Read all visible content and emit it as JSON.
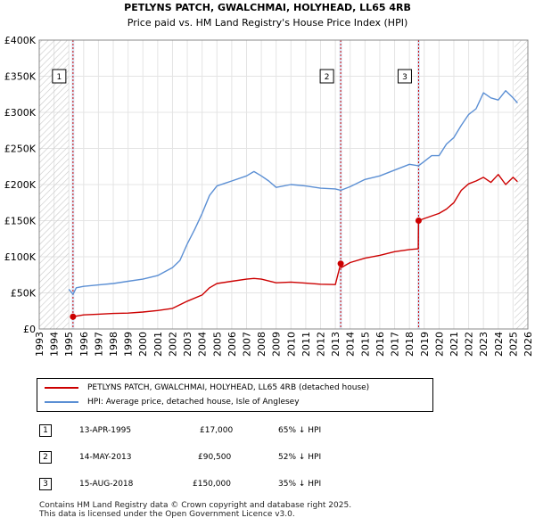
{
  "chart_data": {
    "type": "line",
    "title": "PETLYNS PATCH, GWALCHMAI, HOLYHEAD, LL65 4RB",
    "subtitle": "Price paid vs. HM Land Registry's House Price Index (HPI)",
    "xlim": [
      1993,
      2026
    ],
    "ylim": [
      0,
      400000
    ],
    "x_ticks": [
      1993,
      1994,
      1995,
      1996,
      1997,
      1998,
      1999,
      2000,
      2001,
      2002,
      2003,
      2004,
      2005,
      2006,
      2007,
      2008,
      2009,
      2010,
      2011,
      2012,
      2013,
      2014,
      2015,
      2016,
      2017,
      2018,
      2019,
      2020,
      2021,
      2022,
      2023,
      2024,
      2025,
      2026
    ],
    "y_ticks": [
      0,
      50000,
      100000,
      150000,
      200000,
      250000,
      300000,
      350000,
      400000
    ],
    "y_tick_labels": [
      "£0",
      "£50K",
      "£100K",
      "£150K",
      "£200K",
      "£250K",
      "£300K",
      "£350K",
      "£400K"
    ],
    "hatch_regions": [
      [
        1993,
        1995.0
      ],
      [
        2025.1,
        2026
      ]
    ],
    "colors": {
      "price": "#cc0000",
      "hpi": "#5b8fd4",
      "shade": "#dbe6f5",
      "vline": "#cc0000"
    },
    "series": [
      {
        "name": "PETLYNS PATCH, GWALCHMAI, HOLYHEAD, LL65 4RB (detached house)",
        "key": "price",
        "x": [
          1995.28,
          1996,
          1997,
          1998,
          1999,
          2000,
          2001,
          2002,
          2003,
          2004,
          2004.5,
          2005,
          2006,
          2007,
          2007.5,
          2008,
          2009,
          2010,
          2011,
          2012,
          2013.0,
          2013.36,
          2013.4,
          2014,
          2015,
          2016,
          2017,
          2018.0,
          2018.6,
          2018.62,
          2019,
          2020,
          2020.5,
          2021,
          2021.5,
          2022,
          2022.5,
          2023,
          2023.5,
          2024,
          2024.5,
          2025,
          2025.3
        ],
        "y": [
          17000,
          19500,
          20500,
          21500,
          22000,
          23500,
          25500,
          28500,
          38500,
          47000,
          57000,
          63000,
          66000,
          69000,
          70000,
          69000,
          64000,
          65000,
          63500,
          62000,
          61500,
          90500,
          85000,
          92000,
          98000,
          102000,
          107000,
          110000,
          111000,
          150000,
          153000,
          160000,
          166000,
          175000,
          192000,
          201000,
          205000,
          210000,
          203000,
          214000,
          200000,
          210000,
          204000
        ]
      },
      {
        "name": "HPI: Average price, detached house, Isle of Anglesey",
        "key": "hpi",
        "x": [
          1995.0,
          1995.28,
          1995.5,
          1996,
          1997,
          1998,
          1999,
          2000,
          2001,
          2002,
          2002.5,
          2003,
          2003.5,
          2004,
          2004.5,
          2005,
          2006,
          2007,
          2007.5,
          2008,
          2008.5,
          2009,
          2010,
          2011,
          2012,
          2013,
          2013.36,
          2014,
          2015,
          2016,
          2017,
          2018,
          2018.62,
          2019,
          2019.5,
          2020,
          2020.5,
          2021,
          2021.5,
          2022,
          2022.5,
          2023,
          2023.5,
          2024,
          2024.5,
          2025,
          2025.3
        ],
        "y": [
          55000,
          48000,
          57000,
          59000,
          61000,
          63000,
          66000,
          69000,
          74000,
          85000,
          95000,
          118000,
          138000,
          160000,
          185000,
          198000,
          205000,
          212000,
          218000,
          212000,
          205000,
          196000,
          200000,
          198000,
          195000,
          194000,
          192000,
          197000,
          207000,
          212000,
          220000,
          228000,
          226000,
          232000,
          240000,
          240000,
          256000,
          265000,
          282000,
          297000,
          305000,
          327000,
          320000,
          317000,
          330000,
          320000,
          313000
        ]
      }
    ],
    "sales": [
      {
        "id": "1",
        "x": 1995.28,
        "y": 17000
      },
      {
        "id": "2",
        "x": 2013.36,
        "y": 90500
      },
      {
        "id": "3",
        "x": 2018.62,
        "y": 150000
      }
    ],
    "legend_position": "below"
  },
  "legend": {
    "price_label": "PETLYNS PATCH, GWALCHMAI, HOLYHEAD, LL65 4RB (detached house)",
    "hpi_label": "HPI: Average price, detached house, Isle of Anglesey"
  },
  "transactions": [
    {
      "id": "1",
      "date": "13-APR-1995",
      "price": "£17,000",
      "hpi": "65% ↓ HPI"
    },
    {
      "id": "2",
      "date": "14-MAY-2013",
      "price": "£90,500",
      "hpi": "52% ↓ HPI"
    },
    {
      "id": "3",
      "date": "15-AUG-2018",
      "price": "£150,000",
      "hpi": "35% ↓ HPI"
    }
  ],
  "footer": {
    "line1": "Contains HM Land Registry data © Crown copyright and database right 2025.",
    "line2": "This data is licensed under the Open Government Licence v3.0."
  }
}
